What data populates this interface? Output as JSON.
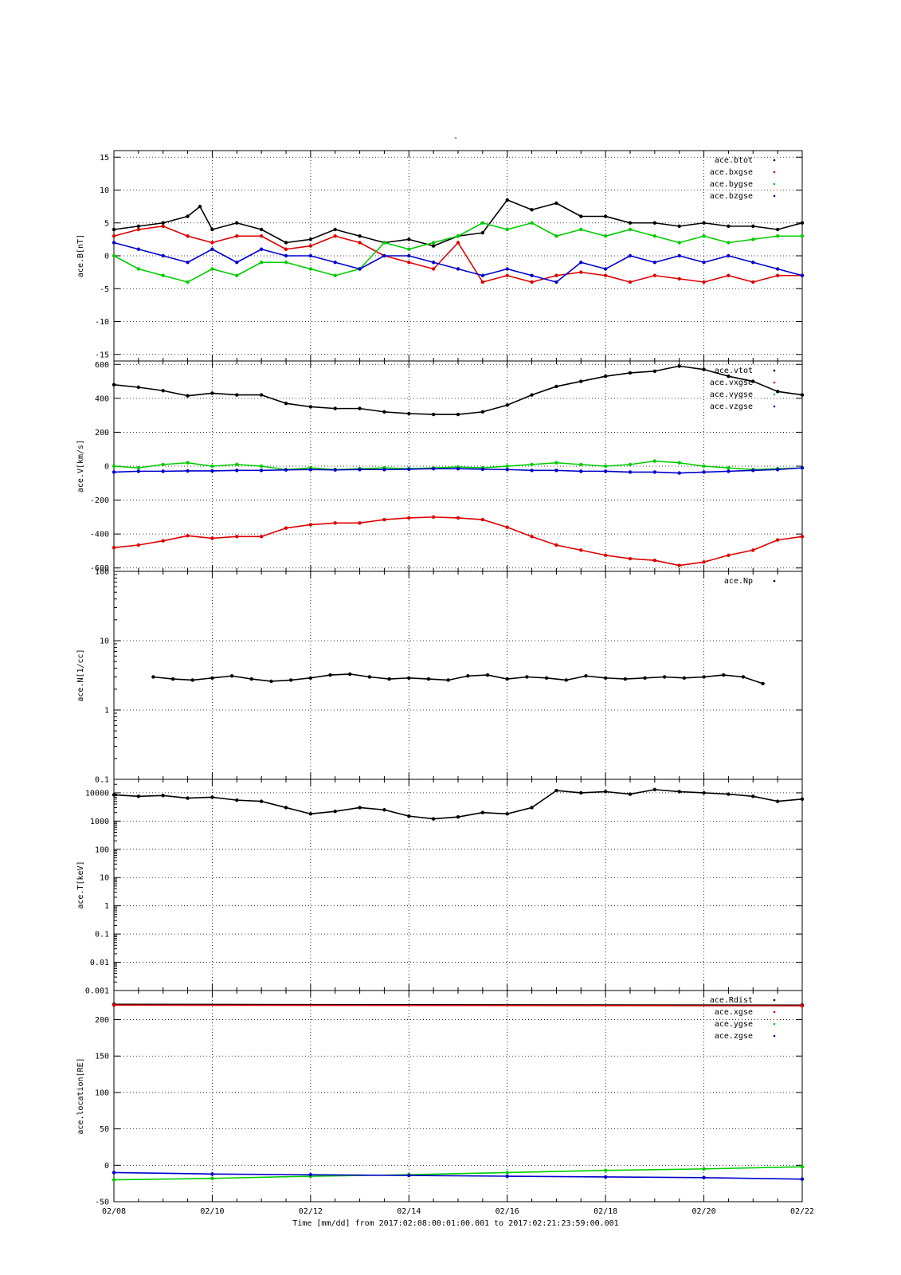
{
  "figure": {
    "title": "-",
    "footer": "Time [mm/dd]  from 2017:02:08:00:01:00.001  to  2017:02:21:23:59:00.001"
  },
  "x_axis": {
    "ticks": [
      "02/08",
      "02/10",
      "02/12",
      "02/14",
      "02/16",
      "02/18",
      "02/20",
      "02/22"
    ],
    "range_days": [
      0,
      14
    ]
  },
  "colors": {
    "black": "#000000",
    "red": "#dd0000",
    "green": "#00cc00",
    "blue": "#0000cc"
  },
  "chart_data": [
    {
      "type": "scatter",
      "ylabel": "ace.B[nT]",
      "ylim": [
        -16,
        16
      ],
      "scale": "linear",
      "yticks": [
        15,
        10,
        5,
        0,
        -5,
        -10,
        -15
      ],
      "grid": true,
      "legend_position": "top-right",
      "series": [
        {
          "name": "ace.btot",
          "color": "#000000",
          "x": [
            0,
            0.5,
            1,
            1.5,
            1.75,
            2,
            2.5,
            3,
            3.5,
            4,
            4.5,
            5,
            5.5,
            6,
            6.5,
            7,
            7.5,
            8,
            8.5,
            9,
            9.5,
            10,
            10.5,
            11,
            11.5,
            12,
            12.5,
            13,
            13.5,
            14
          ],
          "y": [
            4,
            4.5,
            5,
            6,
            7.5,
            4,
            5,
            4,
            2,
            2.5,
            4,
            3,
            2,
            2.5,
            1.5,
            3,
            3.5,
            8.5,
            7,
            8,
            6,
            6,
            5,
            5,
            4.5,
            5,
            4.5,
            4.5,
            4,
            5
          ]
        },
        {
          "name": "ace.bxgse",
          "color": "#dd0000",
          "x": [
            0,
            0.5,
            1,
            1.5,
            2,
            2.5,
            3,
            3.5,
            4,
            4.5,
            5,
            5.5,
            6,
            6.5,
            7,
            7.5,
            8,
            8.5,
            9,
            9.5,
            10,
            10.5,
            11,
            11.5,
            12,
            12.5,
            13,
            13.5,
            14
          ],
          "y": [
            3,
            4,
            4.5,
            3,
            2,
            3,
            3,
            1,
            1.5,
            3,
            2,
            0,
            -1,
            -2,
            2,
            -4,
            -3,
            -4,
            -3,
            -2.5,
            -3,
            -4,
            -3,
            -3.5,
            -4,
            -3,
            -4,
            -3,
            -3
          ]
        },
        {
          "name": "ace.bygse",
          "color": "#00cc00",
          "x": [
            0,
            0.5,
            1,
            1.5,
            2,
            2.5,
            3,
            3.5,
            4,
            4.5,
            5,
            5.5,
            6,
            6.5,
            7,
            7.5,
            8,
            8.5,
            9,
            9.5,
            10,
            10.5,
            11,
            11.5,
            12,
            12.5,
            13,
            13.5,
            14
          ],
          "y": [
            0,
            -2,
            -3,
            -4,
            -2,
            -3,
            -1,
            -1,
            -2,
            -3,
            -2,
            2,
            1,
            2,
            3,
            5,
            4,
            5,
            3,
            4,
            3,
            4,
            3,
            2,
            3,
            2,
            2.5,
            3,
            3
          ]
        },
        {
          "name": "ace.bzgse",
          "color": "#0000cc",
          "x": [
            0,
            0.5,
            1,
            1.5,
            2,
            2.5,
            3,
            3.5,
            4,
            4.5,
            5,
            5.5,
            6,
            6.5,
            7,
            7.5,
            8,
            8.5,
            9,
            9.5,
            10,
            10.5,
            11,
            11.5,
            12,
            12.5,
            13,
            13.5,
            14
          ],
          "y": [
            2,
            1,
            0,
            -1,
            1,
            -1,
            1,
            0,
            0,
            -1,
            -2,
            0,
            0,
            -1,
            -2,
            -3,
            -2,
            -3,
            -4,
            -1,
            -2,
            0,
            -1,
            0,
            -1,
            0,
            -1,
            -2,
            -3
          ]
        }
      ]
    },
    {
      "type": "scatter",
      "ylabel": "ace.V[km/s]",
      "ylim": [
        -620,
        620
      ],
      "scale": "linear",
      "yticks": [
        600,
        400,
        200,
        0,
        -200,
        -400,
        -600
      ],
      "grid": true,
      "legend_position": "top-right",
      "series": [
        {
          "name": "ace.vtot",
          "color": "#000000",
          "x": [
            0,
            0.5,
            1,
            1.5,
            2,
            2.5,
            3,
            3.5,
            4,
            4.5,
            5,
            5.5,
            6,
            6.5,
            7,
            7.5,
            8,
            8.5,
            9,
            9.5,
            10,
            10.5,
            11,
            11.5,
            12,
            12.5,
            13,
            13.5,
            14
          ],
          "y": [
            480,
            465,
            445,
            415,
            430,
            420,
            420,
            370,
            350,
            340,
            340,
            320,
            310,
            305,
            305,
            320,
            360,
            420,
            470,
            500,
            530,
            550,
            560,
            590,
            570,
            530,
            500,
            440,
            420
          ]
        },
        {
          "name": "ace.vxgse",
          "color": "#dd0000",
          "x": [
            0,
            0.5,
            1,
            1.5,
            2,
            2.5,
            3,
            3.5,
            4,
            4.5,
            5,
            5.5,
            6,
            6.5,
            7,
            7.5,
            8,
            8.5,
            9,
            9.5,
            10,
            10.5,
            11,
            11.5,
            12,
            12.5,
            13,
            13.5,
            14
          ],
          "y": [
            -480,
            -465,
            -440,
            -410,
            -425,
            -415,
            -415,
            -365,
            -345,
            -335,
            -335,
            -315,
            -305,
            -300,
            -305,
            -315,
            -360,
            -415,
            -465,
            -495,
            -525,
            -545,
            -555,
            -585,
            -565,
            -525,
            -495,
            -435,
            -415
          ]
        },
        {
          "name": "ace.vygse",
          "color": "#00cc00",
          "x": [
            0,
            0.5,
            1,
            1.5,
            2,
            2.5,
            3,
            3.5,
            4,
            4.5,
            5,
            5.5,
            6,
            6.5,
            7,
            7.5,
            8,
            8.5,
            9,
            9.5,
            10,
            10.5,
            11,
            11.5,
            12,
            12.5,
            13,
            13.5,
            14
          ],
          "y": [
            0,
            -10,
            10,
            20,
            0,
            10,
            0,
            -20,
            -10,
            -20,
            -15,
            -10,
            -15,
            -10,
            -5,
            -10,
            0,
            10,
            20,
            10,
            0,
            10,
            30,
            20,
            0,
            -10,
            -20,
            -15,
            -10
          ]
        },
        {
          "name": "ace.vzgse",
          "color": "#0000cc",
          "x": [
            0,
            0.5,
            1,
            1.5,
            2,
            2.5,
            3,
            3.5,
            4,
            4.5,
            5,
            5.5,
            6,
            6.5,
            7,
            7.5,
            8,
            8.5,
            9,
            9.5,
            10,
            10.5,
            11,
            11.5,
            12,
            12.5,
            13,
            13.5,
            14
          ],
          "y": [
            -35,
            -30,
            -30,
            -28,
            -28,
            -25,
            -25,
            -22,
            -20,
            -22,
            -20,
            -20,
            -18,
            -15,
            -15,
            -18,
            -20,
            -25,
            -25,
            -30,
            -30,
            -35,
            -35,
            -40,
            -35,
            -30,
            -25,
            -20,
            -10
          ]
        }
      ]
    },
    {
      "type": "scatter",
      "ylabel": "ace.N[1/cc]",
      "ylim": [
        0.1,
        100
      ],
      "scale": "log",
      "yticks": [
        100,
        10,
        1,
        0.1
      ],
      "grid": true,
      "legend_position": "top-right",
      "series": [
        {
          "name": "ace.Np",
          "color": "#000000",
          "x": [
            0.8,
            1.2,
            1.6,
            2.0,
            2.4,
            2.8,
            3.2,
            3.6,
            4.0,
            4.4,
            4.8,
            5.2,
            5.6,
            6.0,
            6.4,
            6.8,
            7.2,
            7.6,
            8.0,
            8.4,
            8.8,
            9.2,
            9.6,
            10.0,
            10.4,
            10.8,
            11.2,
            11.6,
            12.0,
            12.4,
            12.8,
            13.2
          ],
          "y": [
            3.0,
            2.8,
            2.7,
            2.9,
            3.1,
            2.8,
            2.6,
            2.7,
            2.9,
            3.2,
            3.3,
            3.0,
            2.8,
            2.9,
            2.8,
            2.7,
            3.1,
            3.2,
            2.8,
            3.0,
            2.9,
            2.7,
            3.1,
            2.9,
            2.8,
            2.9,
            3.0,
            2.9,
            3.0,
            3.2,
            3.0,
            2.4
          ]
        }
      ]
    },
    {
      "type": "scatter",
      "ylabel": "ace.T[keV]",
      "ylim": [
        0.001,
        30000
      ],
      "scale": "log",
      "yticks": [
        10000,
        1000,
        100,
        10,
        1,
        0.1,
        0.01,
        0.001
      ],
      "grid": true,
      "legend_position": "none",
      "series": [
        {
          "name": "",
          "color": "#000000",
          "x": [
            0,
            0.5,
            1,
            1.5,
            2,
            2.5,
            3,
            3.5,
            4,
            4.5,
            5,
            5.5,
            6,
            6.5,
            7,
            7.5,
            8,
            8.5,
            9,
            9.5,
            10,
            10.5,
            11,
            11.5,
            12,
            12.5,
            13,
            13.5,
            14
          ],
          "y": [
            8500,
            7500,
            8000,
            6500,
            7000,
            5500,
            5000,
            3000,
            1800,
            2200,
            3000,
            2500,
            1500,
            1200,
            1400,
            2000,
            1800,
            3000,
            12000,
            10000,
            11000,
            9000,
            13000,
            11000,
            10000,
            9000,
            7500,
            5000,
            6000
          ]
        }
      ]
    },
    {
      "type": "scatter",
      "ylabel": "ace.location[RE]",
      "ylim": [
        -50,
        240
      ],
      "scale": "linear",
      "yticks": [
        200,
        150,
        100,
        50,
        0,
        -50
      ],
      "grid": true,
      "legend_position": "top-right",
      "series": [
        {
          "name": "ace.Rdist",
          "color": "#000000",
          "x": [
            0,
            14
          ],
          "y": [
            221,
            220
          ]
        },
        {
          "name": "ace.xgse",
          "color": "#dd0000",
          "x": [
            0,
            14
          ],
          "y": [
            220,
            219
          ]
        },
        {
          "name": "ace.ygse",
          "color": "#00cc00",
          "x": [
            0,
            2,
            4,
            6,
            8,
            10,
            12,
            14
          ],
          "y": [
            -20,
            -18,
            -15,
            -13,
            -10,
            -7,
            -5,
            -2
          ]
        },
        {
          "name": "ace.zgse",
          "color": "#0000cc",
          "x": [
            0,
            2,
            4,
            6,
            8,
            10,
            12,
            14
          ],
          "y": [
            -10,
            -12,
            -13,
            -14,
            -15,
            -16,
            -17,
            -19
          ]
        }
      ]
    }
  ]
}
